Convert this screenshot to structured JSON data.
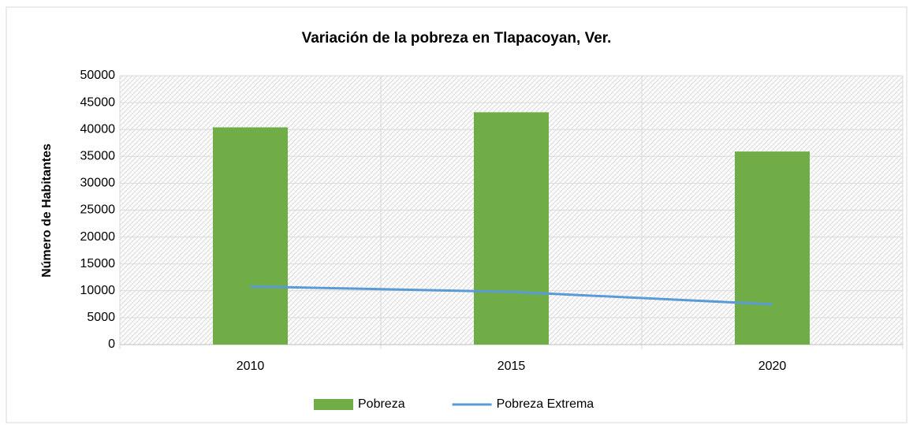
{
  "chart_data": {
    "type": "bar",
    "title": "Variación de la pobreza en Tlapacoyan, Ver.",
    "y_label": "Número de Habitantes",
    "categories": [
      "2010",
      "2015",
      "2020"
    ],
    "series": [
      {
        "name": "Pobreza",
        "type": "bar",
        "color": "#70ad47",
        "values": [
          40400,
          43200,
          35900
        ]
      },
      {
        "name": "Pobreza Extrema",
        "type": "line",
        "color": "#5b9bd5",
        "values": [
          10800,
          9800,
          7500
        ]
      }
    ],
    "ylim": [
      0,
      50000
    ],
    "yticks": [
      0,
      5000,
      10000,
      15000,
      20000,
      25000,
      30000,
      35000,
      40000,
      45000,
      50000
    ],
    "grid": true,
    "legend": "bottom"
  }
}
